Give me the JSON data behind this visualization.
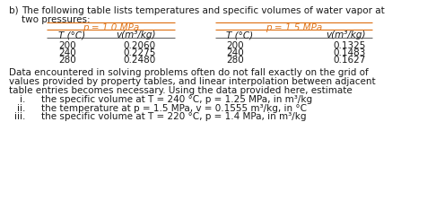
{
  "orange_color": "#E07820",
  "black_color": "#1A1A1A",
  "bg_color": "#FFFFFF",
  "p1_header": "p = 1.0 MPa",
  "p2_header": "p = 1.5 MPa",
  "col_T": "T (°C)",
  "col_v": "v(m³/kg)",
  "p1_data": [
    [
      "200",
      "0.2060"
    ],
    [
      "240",
      "0.2275"
    ],
    [
      "280",
      "0.2480"
    ]
  ],
  "p2_data": [
    [
      "200",
      "0.1325"
    ],
    [
      "240",
      "0.1483"
    ],
    [
      "280",
      "0.1627"
    ]
  ],
  "para_lines": [
    "Data encountered in solving problems often do not fall exactly on the grid of",
    "values provided by property tables, and linear interpolation between adjacent",
    "table entries becomes necessary. Using the data provided here, estimate"
  ],
  "item_labels": [
    "i.",
    "ii.",
    "iii."
  ],
  "items": [
    "the specific volume at T = 240 °C, p = 1.25 MPa, in m³/kg",
    "the temperature at p = 1.5 MPa, v = 0.1555 m³/kg, in °C",
    "the specific volume at T = 220 °C, p = 1.4 MPa, in m³/kg"
  ],
  "title_b": "b)",
  "title_rest": "The following table lists temperatures and specific volumes of water vapor at",
  "title_line2": "two pressures:"
}
